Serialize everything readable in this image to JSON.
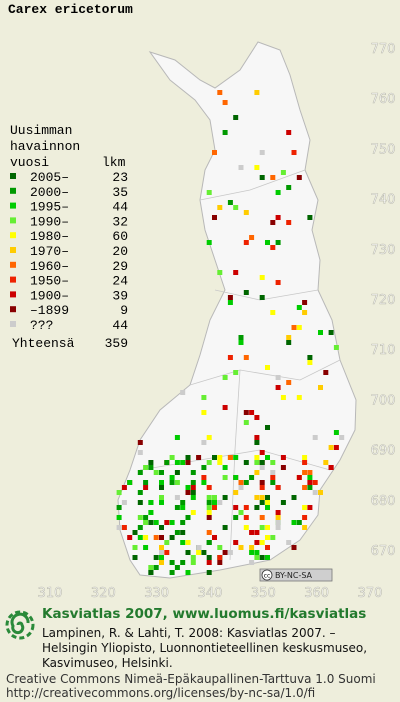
{
  "title": "Carex ericetorum",
  "legend": {
    "heading": [
      "Uusimman",
      "havainnon"
    ],
    "col_year": "vuosi",
    "col_count": "lkm",
    "rows": [
      {
        "label": "2005–",
        "count": 23,
        "color": "#006600"
      },
      {
        "label": "2000–",
        "count": 35,
        "color": "#009900"
      },
      {
        "label": "1995–",
        "count": 44,
        "color": "#00cc00"
      },
      {
        "label": "1990–",
        "count": 32,
        "color": "#66ee33"
      },
      {
        "label": "1980–",
        "count": 60,
        "color": "#ffff00"
      },
      {
        "label": "1970–",
        "count": 20,
        "color": "#ffcc00"
      },
      {
        "label": "1960–",
        "count": 29,
        "color": "#ff6600"
      },
      {
        "label": "1950–",
        "count": 24,
        "color": "#ee2200"
      },
      {
        "label": "1900–",
        "count": 39,
        "color": "#cc0000"
      },
      {
        "label": "–1899",
        "count": 9,
        "color": "#880000"
      },
      {
        "label": "???",
        "count": 44,
        "color": "#cccccc"
      }
    ],
    "total_label": "Yhteensä",
    "total": 359
  },
  "axes": {
    "xticks": [
      310,
      320,
      330,
      340,
      350,
      360,
      370
    ],
    "yticks": [
      670,
      680,
      690,
      700,
      710,
      720,
      730,
      740,
      750,
      760,
      770
    ]
  },
  "license_badge": "BY-NC-SA",
  "footer": {
    "site": "Kasviatlas 2007, www.luomus.fi/kasviatlas",
    "citation": [
      "Lampinen, R. & Lahti, T. 2008: Kasviatlas 2007. –",
      "Helsingin Yliopisto, Luonnontieteellinen keskusmuseo,",
      "Kasvimuseo, Helsinki."
    ],
    "license": [
      "Creative Commons Nimeä-Epäkaupallinen-Tarttuva 1.0 Suomi",
      "http://creativecommons.org/licenses/by-nc-sa/1.0/fi"
    ]
  }
}
